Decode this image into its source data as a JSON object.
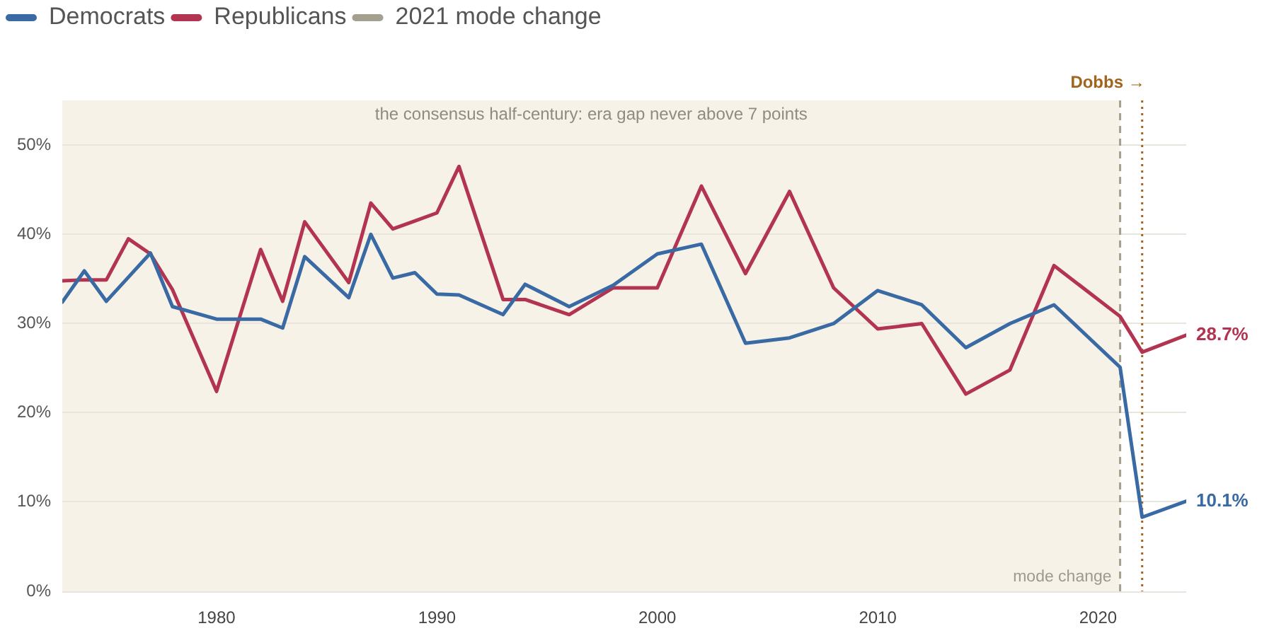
{
  "chart_data": {
    "type": "line",
    "legend": "top left",
    "grid": "y",
    "marker": "none",
    "line_style": "solid",
    "xlim": [
      1973,
      2024
    ],
    "xticks": [
      1980,
      1990,
      2000,
      2010,
      2020
    ],
    "ylim": [
      0,
      55
    ],
    "yticks": [
      {
        "value": 0,
        "label": "0%"
      },
      {
        "value": 10,
        "label": "10%"
      },
      {
        "value": 20,
        "label": "20%"
      },
      {
        "value": 30,
        "label": "30%"
      },
      {
        "value": 40,
        "label": "40%"
      },
      {
        "value": 50,
        "label": "50%"
      }
    ],
    "series": [
      {
        "name": "Democrats",
        "color": "#3a6aa3",
        "x": [
          1973,
          1974,
          1975,
          1976,
          1977,
          1978,
          1980,
          1982,
          1983,
          1984,
          1986,
          1987,
          1988,
          1989,
          1990,
          1991,
          1993,
          1994,
          1996,
          1998,
          2000,
          2002,
          2004,
          2006,
          2008,
          2010,
          2012,
          2014,
          2016,
          2018,
          2021,
          2022,
          2024
        ],
        "values": [
          32.4,
          35.9,
          32.5,
          35.2,
          37.9,
          31.9,
          30.5,
          30.5,
          29.5,
          37.5,
          32.9,
          40.0,
          35.1,
          35.7,
          33.3,
          33.2,
          31.0,
          34.4,
          31.9,
          34.3,
          37.8,
          38.9,
          27.8,
          28.4,
          30.0,
          33.7,
          32.1,
          27.3,
          30.0,
          32.1,
          25.1,
          8.3,
          10.1
        ],
        "value_labels": [
          null,
          null,
          null,
          null,
          null,
          null,
          null,
          null,
          null,
          null,
          null,
          null,
          null,
          null,
          null,
          null,
          null,
          null,
          null,
          null,
          null,
          null,
          null,
          null,
          null,
          null,
          null,
          null,
          null,
          null,
          null,
          null,
          "10.1%"
        ]
      },
      {
        "name": "Republicans",
        "color": "#b23450",
        "x": [
          1973,
          1974,
          1975,
          1976,
          1977,
          1978,
          1980,
          1982,
          1983,
          1984,
          1986,
          1987,
          1988,
          1989,
          1990,
          1991,
          1993,
          1994,
          1996,
          1998,
          2000,
          2002,
          2004,
          2006,
          2008,
          2010,
          2012,
          2014,
          2016,
          2018,
          2021,
          2022,
          2024
        ],
        "values": [
          34.8,
          34.9,
          34.9,
          39.5,
          37.8,
          33.8,
          22.4,
          38.3,
          32.5,
          41.4,
          34.6,
          43.5,
          40.6,
          41.5,
          42.4,
          47.6,
          32.7,
          32.7,
          31.0,
          34.0,
          34.0,
          45.4,
          35.6,
          44.8,
          34.0,
          29.4,
          30.0,
          22.1,
          24.8,
          36.5,
          30.8,
          26.8,
          28.7
        ],
        "value_labels": [
          null,
          null,
          null,
          null,
          null,
          null,
          null,
          null,
          null,
          null,
          null,
          null,
          null,
          null,
          null,
          null,
          null,
          null,
          null,
          null,
          null,
          null,
          null,
          null,
          null,
          null,
          null,
          null,
          null,
          null,
          null,
          null,
          "28.7%"
        ]
      },
      {
        "name": "2021 mode change",
        "color": "#a3a08f",
        "x": [
          2021,
          2021
        ],
        "values": [
          0,
          55
        ],
        "line_style": "dashed"
      }
    ],
    "ref_lines": [
      {
        "axis": "x",
        "value": 2022,
        "label": "Dobbs →",
        "color": "#a0661e",
        "line_style": "dotted"
      }
    ],
    "bands": [
      {
        "axis": "x",
        "from": 1973,
        "to": 2021,
        "label": "the consensus half-century: era gap never above 7 points",
        "color": "#f6f2e8"
      }
    ],
    "annotations": [
      {
        "text": "mode change",
        "x": 2021,
        "y": 0
      }
    ]
  }
}
